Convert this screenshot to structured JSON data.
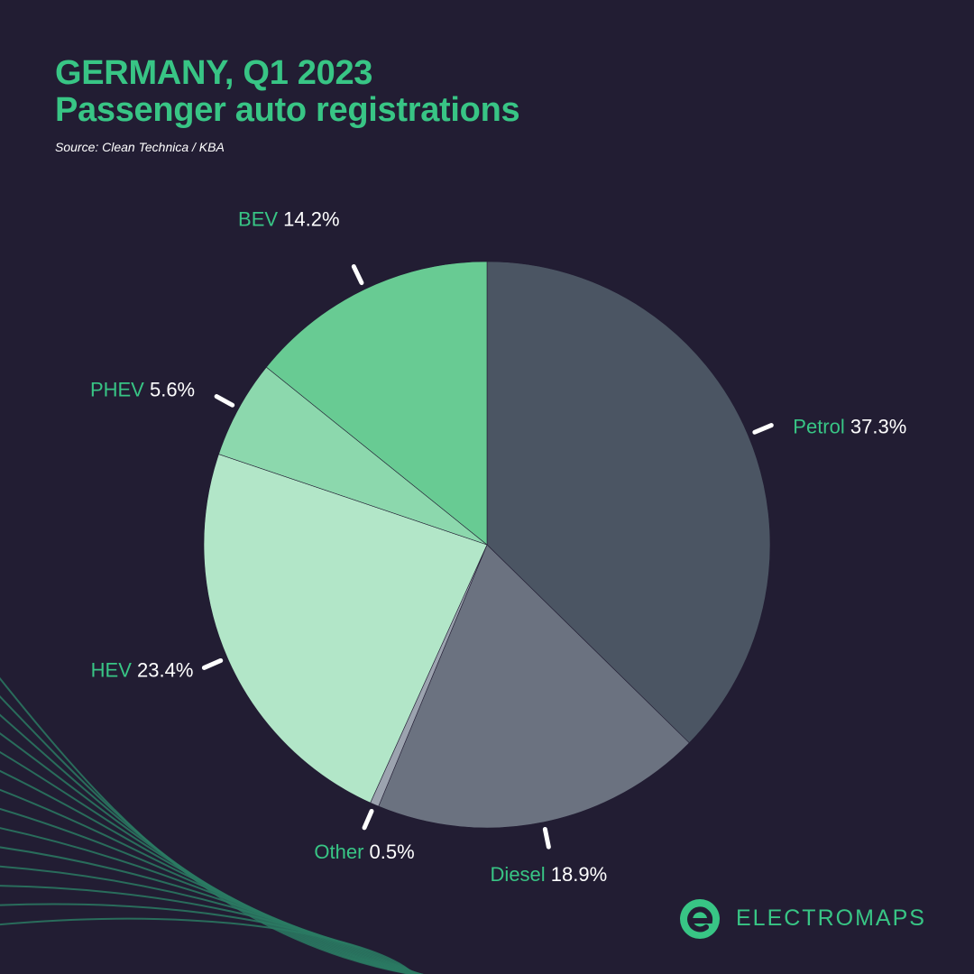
{
  "title": {
    "line1": "GERMANY, Q1 2023",
    "line2": "Passenger auto registrations"
  },
  "source": "Source: Clean Technica / KBA",
  "brand": {
    "name": "ELECTROMAPS",
    "logo_icon": "electromaps-e-logo-icon",
    "color": "#38c585"
  },
  "colors": {
    "background": "#221d33",
    "label_name": "#38c585",
    "label_value": "#ffffff",
    "decor_lines": "#2a7a63"
  },
  "chart_data": {
    "type": "pie",
    "start_angle_deg": 0,
    "direction": "clockwise",
    "legend": "none",
    "slices": [
      {
        "name": "Petrol",
        "value": 37.3,
        "label": "37.3%",
        "color": "#4b5563"
      },
      {
        "name": "Diesel",
        "value": 18.9,
        "label": "18.9%",
        "color": "#6b7280"
      },
      {
        "name": "Other",
        "value": 0.5,
        "label": "0.5%",
        "color": "#9ca3af"
      },
      {
        "name": "HEV",
        "value": 23.4,
        "label": "23.4%",
        "color": "#b2e6c8"
      },
      {
        "name": "PHEV",
        "value": 5.6,
        "label": "5.6%",
        "color": "#8cd8ad"
      },
      {
        "name": "BEV",
        "value": 14.2,
        "label": "14.2%",
        "color": "#68cb93"
      }
    ]
  }
}
